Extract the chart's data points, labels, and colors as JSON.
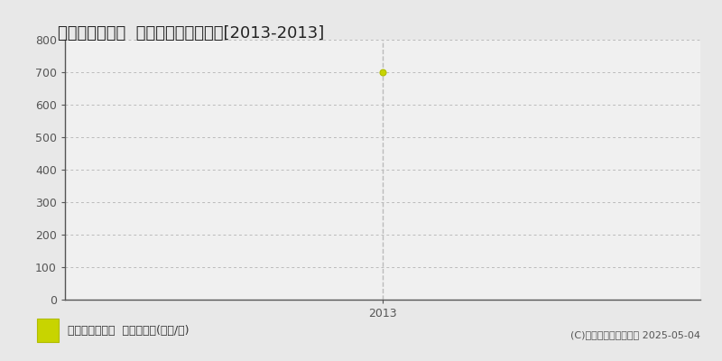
{
  "title": "千代田区有楽町  マンション価格推移[2013-2013]",
  "years": [
    2013
  ],
  "values": [
    700
  ],
  "ylim": [
    0,
    800
  ],
  "yticks": [
    0,
    100,
    200,
    300,
    400,
    500,
    600,
    700,
    800
  ],
  "xlim_left": 2012.3,
  "xlim_right": 2013.7,
  "fig_bg_color": "#e8e8e8",
  "plot_bg_color": "#f0f0f0",
  "grid_color": "#bbbbbb",
  "marker_color": "#c8d400",
  "marker_edge_color": "#b0bc00",
  "vline_color": "#bbbbbb",
  "legend_label": "マンション価格  平均嵪単価(万円/嵪)",
  "copyright_text": "(C)土地価格ドットコム 2025-05-04",
  "title_fontsize": 13,
  "axis_fontsize": 9,
  "legend_fontsize": 9,
  "copyright_fontsize": 8,
  "spine_color": "#555555",
  "tick_color": "#555555",
  "legend_area_bg": "#e8e8e8",
  "legend_box_bg": "#ffffff"
}
